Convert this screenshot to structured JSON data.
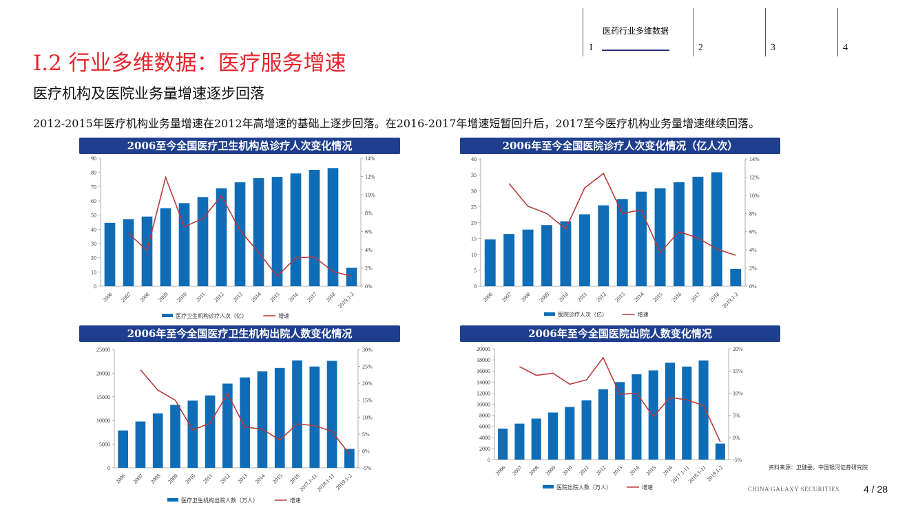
{
  "nav": {
    "active_title": "医药行业多维数据",
    "items": [
      "I",
      "2",
      "3",
      "4"
    ]
  },
  "title": "I.2 行业多维数据：医疗服务增速",
  "subtitle": "医疗机构及医院业务量增速逐步回落",
  "description": "2012-2015年医疗机构业务量增速在2012年高增速的基础上逐步回落。在2016-2017年增速短暂回升后，2017至今医疗机构业务量增速继续回落。",
  "colors": {
    "bar": "#0f6db7",
    "line": "#b83a3a",
    "header_bg": "#1f3f8e",
    "title_red": "#e8242c"
  },
  "source": "资料来源：卫健委，中国银河证券研究院",
  "footer": {
    "brand": "CHINA GALAXY SECURITIES",
    "page": "4 / 28"
  },
  "chart_data": [
    {
      "type": "bar",
      "title": "2006至今全国医疗卫生机构总诊疗人次变化情况",
      "categories": [
        "2006",
        "2007",
        "2008",
        "2009",
        "2010",
        "2011",
        "2012",
        "2013",
        "2014",
        "2015",
        "2016",
        "2017",
        "2018",
        "2019.1-2"
      ],
      "series": [
        {
          "name": "医疗卫生机构诊疗人次（亿）",
          "axis": "left",
          "kind": "bar",
          "values": [
            44.6,
            47.2,
            49.0,
            54.9,
            58.4,
            62.7,
            68.9,
            73.1,
            76.0,
            76.9,
            79.3,
            81.8,
            83.1,
            13.0
          ]
        },
        {
          "name": "增速",
          "axis": "right",
          "kind": "line",
          "values": [
            null,
            5.8,
            3.9,
            11.9,
            6.5,
            7.4,
            9.9,
            6.1,
            3.7,
            1.1,
            3.1,
            3.2,
            1.6,
            1.1
          ]
        }
      ],
      "ylim_left": [
        0,
        90
      ],
      "yticks_left": [
        "0",
        "10",
        "20",
        "30",
        "40",
        "50",
        "60",
        "70",
        "80",
        "90"
      ],
      "ylim_right": [
        0,
        14
      ],
      "yticks_right": [
        "0%",
        "2%",
        "4%",
        "6%",
        "8%",
        "10%",
        "12%",
        "14%"
      ],
      "legend": [
        "医疗卫生机构诊疗人次（亿）",
        "增速"
      ]
    },
    {
      "type": "bar",
      "title": "2006年至今全国医院诊疗人次变化情况（亿人次）",
      "categories": [
        "2006",
        "2007",
        "2008",
        "2009",
        "2010",
        "2011",
        "2012",
        "2013",
        "2014",
        "2015",
        "2016",
        "2017",
        "2018",
        "2019.1-2"
      ],
      "series": [
        {
          "name": "医院诊疗人次（亿）",
          "axis": "left",
          "kind": "bar",
          "values": [
            14.7,
            16.4,
            17.8,
            19.2,
            20.4,
            22.6,
            25.4,
            27.4,
            29.7,
            30.8,
            32.7,
            34.4,
            35.8,
            5.4
          ]
        },
        {
          "name": "增速",
          "axis": "right",
          "kind": "line",
          "values": [
            null,
            11.3,
            8.8,
            8.0,
            6.3,
            10.8,
            12.4,
            8.0,
            8.4,
            3.7,
            6.0,
            5.3,
            4.1,
            3.4
          ]
        }
      ],
      "ylim_left": [
        0,
        40
      ],
      "yticks_left": [
        "0",
        "5",
        "10",
        "15",
        "20",
        "25",
        "30",
        "35",
        "40"
      ],
      "ylim_right": [
        0,
        14
      ],
      "yticks_right": [
        "0%",
        "2%",
        "4%",
        "6%",
        "8%",
        "10%",
        "12%",
        "14%"
      ],
      "legend": [
        "医院诊疗人次（亿）",
        "增速"
      ]
    },
    {
      "type": "bar",
      "title": "2006年至今全国医疗卫生机构出院人数变化情况",
      "categories": [
        "2006",
        "2007",
        "2008",
        "2009",
        "2010",
        "2011",
        "2012",
        "2013",
        "2014",
        "2015",
        "2016",
        "2017.1-11",
        "2018.1-11",
        "2019.1-2"
      ],
      "series": [
        {
          "name": "医疗卫生机构出院人数（万人）",
          "axis": "left",
          "kind": "bar",
          "values": [
            7900,
            9800,
            11500,
            13300,
            14200,
            15300,
            17800,
            19100,
            20400,
            21100,
            22700,
            21400,
            22600,
            4000
          ]
        },
        {
          "name": "增速",
          "axis": "right",
          "kind": "line",
          "values": [
            null,
            24,
            18,
            15,
            6.2,
            8.2,
            17,
            7,
            6.5,
            3.2,
            8,
            7.5,
            5.8,
            -1
          ]
        }
      ],
      "ylim_left": [
        0,
        25000
      ],
      "yticks_left": [
        "0",
        "5000",
        "10000",
        "15000",
        "20000",
        "25000"
      ],
      "ylim_right": [
        -5,
        30
      ],
      "yticks_right": [
        "-5%",
        "0%",
        "5%",
        "10%",
        "15%",
        "20%",
        "25%",
        "30%"
      ],
      "legend": [
        "医疗卫生机构出院人数（万人）",
        "增速"
      ]
    },
    {
      "type": "bar",
      "title": "2006年至今全国医院出院人数变化情况",
      "categories": [
        "2006",
        "2007",
        "2008",
        "2009",
        "2010",
        "2011",
        "2012",
        "2013",
        "2014",
        "2015",
        "2016",
        "2017.1-11",
        "2018.1-11",
        "2019.1-2"
      ],
      "series": [
        {
          "name": "医院出院人数（万人）",
          "axis": "left",
          "kind": "bar",
          "values": [
            5600,
            6500,
            7400,
            8500,
            9500,
            10700,
            12700,
            14000,
            15400,
            16100,
            17500,
            16800,
            17900,
            2900
          ]
        },
        {
          "name": "增速",
          "axis": "right",
          "kind": "line",
          "values": [
            null,
            16,
            14,
            14.5,
            12,
            13,
            18,
            9.7,
            10,
            4.7,
            9,
            8.5,
            7.2,
            -1
          ]
        }
      ],
      "ylim_left": [
        0,
        20000
      ],
      "yticks_left": [
        "0",
        "2000",
        "4000",
        "6000",
        "8000",
        "10000",
        "12000",
        "14000",
        "16000",
        "18000",
        "20000"
      ],
      "ylim_right": [
        -5,
        20
      ],
      "yticks_right": [
        "-5%",
        "0%",
        "5%",
        "10%",
        "15%",
        "20%"
      ],
      "legend": [
        "医院出院人数（万人）",
        "增速"
      ]
    }
  ]
}
